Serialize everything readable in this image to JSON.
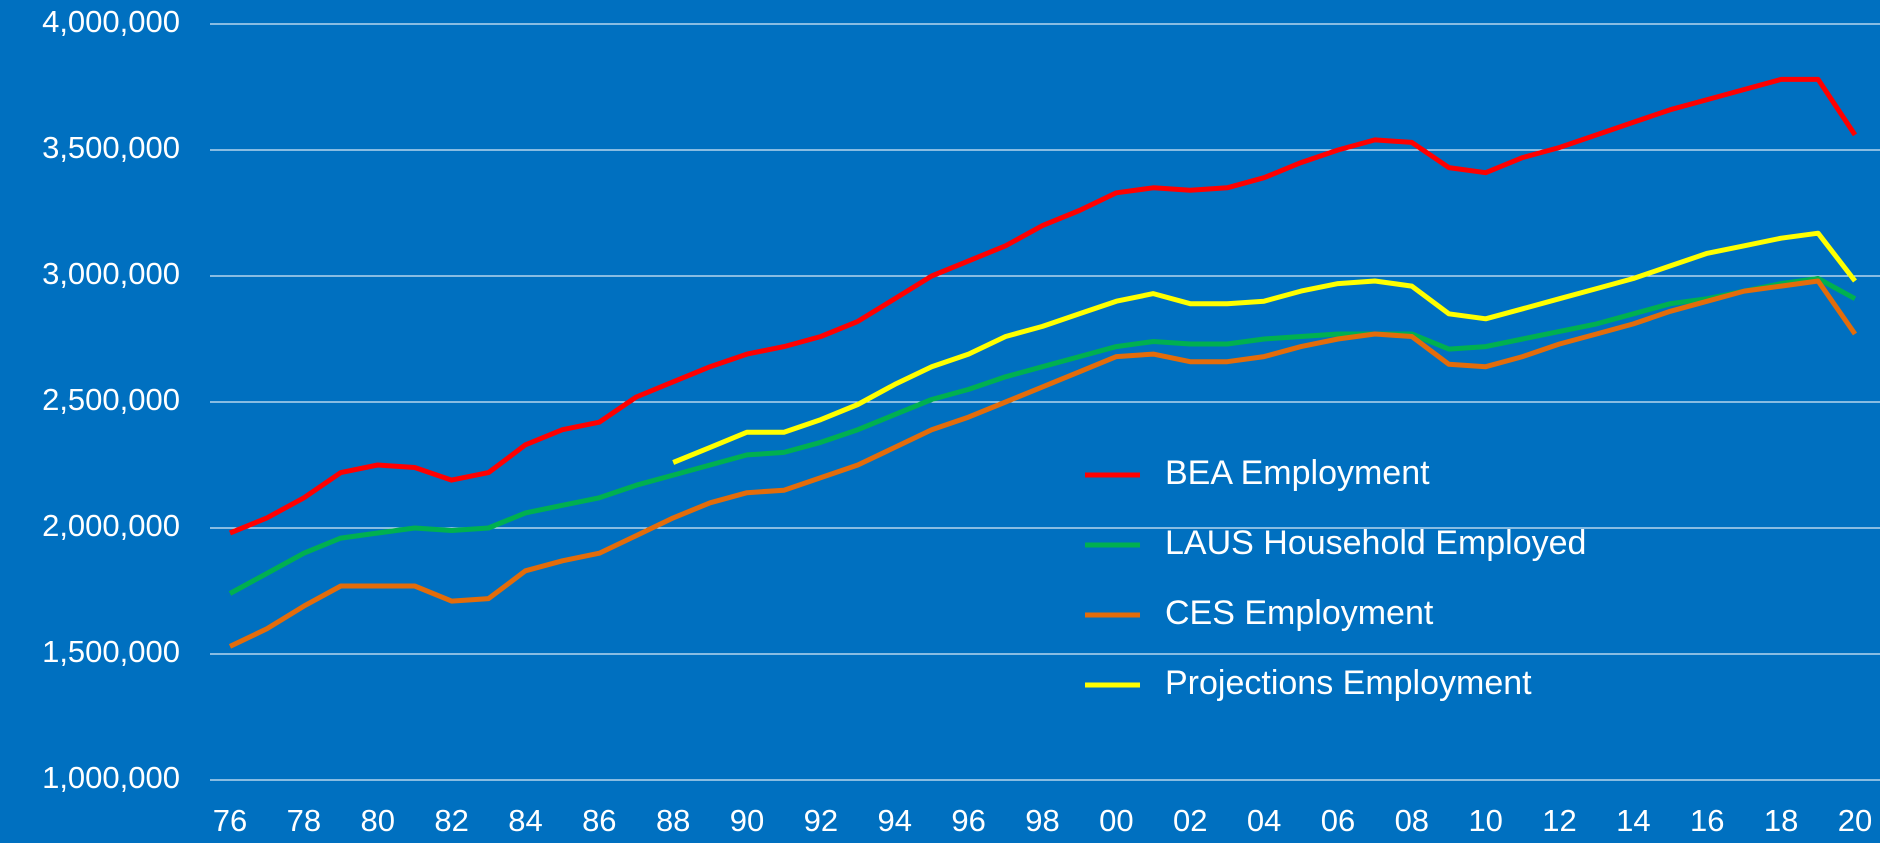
{
  "chart_data": {
    "type": "line",
    "categories": [
      "76",
      null,
      "78",
      null,
      "80",
      null,
      "82",
      null,
      "84",
      null,
      "86",
      null,
      "88",
      null,
      "90",
      null,
      "92",
      null,
      "94",
      null,
      "96",
      null,
      "98",
      null,
      "00",
      null,
      "02",
      null,
      "04",
      null,
      "06",
      null,
      "08",
      null,
      "10",
      null,
      "12",
      null,
      "14",
      null,
      "16",
      null,
      "18",
      null,
      "20"
    ],
    "series": [
      {
        "name": "BEA Employment",
        "color": "#ff0000",
        "values": [
          1980000,
          2040000,
          2120000,
          2220000,
          2250000,
          2240000,
          2190000,
          2220000,
          2330000,
          2390000,
          2420000,
          2520000,
          2580000,
          2640000,
          2690000,
          2720000,
          2760000,
          2820000,
          2910000,
          3000000,
          3060000,
          3120000,
          3200000,
          3260000,
          3330000,
          3350000,
          3340000,
          3350000,
          3390000,
          3450000,
          3500000,
          3540000,
          3530000,
          3430000,
          3410000,
          3470000,
          3510000,
          3560000,
          3610000,
          3660000,
          3700000,
          3740000,
          3780000,
          3780000,
          3560000
        ]
      },
      {
        "name": "LAUS Household Employed",
        "color": "#00b050",
        "values": [
          1740000,
          1820000,
          1900000,
          1960000,
          1980000,
          2000000,
          1990000,
          2000000,
          2060000,
          2090000,
          2120000,
          2170000,
          2210000,
          2250000,
          2290000,
          2300000,
          2340000,
          2390000,
          2450000,
          2510000,
          2550000,
          2600000,
          2640000,
          2680000,
          2720000,
          2740000,
          2730000,
          2730000,
          2750000,
          2760000,
          2770000,
          2770000,
          2770000,
          2710000,
          2720000,
          2750000,
          2780000,
          2810000,
          2850000,
          2890000,
          2910000,
          2940000,
          2970000,
          2990000,
          2910000
        ]
      },
      {
        "name": "CES Employment",
        "color": "#e36c0a",
        "values": [
          1530000,
          1600000,
          1690000,
          1770000,
          1770000,
          1770000,
          1710000,
          1720000,
          1830000,
          1870000,
          1900000,
          1970000,
          2040000,
          2100000,
          2140000,
          2150000,
          2200000,
          2250000,
          2320000,
          2390000,
          2440000,
          2500000,
          2560000,
          2620000,
          2680000,
          2690000,
          2660000,
          2660000,
          2680000,
          2720000,
          2750000,
          2770000,
          2760000,
          2650000,
          2640000,
          2680000,
          2730000,
          2770000,
          2810000,
          2860000,
          2900000,
          2940000,
          2960000,
          2980000,
          2770000
        ]
      },
      {
        "name": "Projections Employment",
        "color": "#ffff00",
        "values": [
          null,
          null,
          null,
          null,
          null,
          null,
          null,
          null,
          null,
          null,
          null,
          null,
          2260000,
          2320000,
          2380000,
          2380000,
          2430000,
          2490000,
          2570000,
          2640000,
          2690000,
          2760000,
          2800000,
          2850000,
          2900000,
          2930000,
          2890000,
          2890000,
          2900000,
          2940000,
          2970000,
          2980000,
          2960000,
          2850000,
          2830000,
          2870000,
          2910000,
          2950000,
          2990000,
          3040000,
          3090000,
          3120000,
          3150000,
          3170000,
          2980000
        ]
      }
    ],
    "ylim": [
      1000000,
      4000000
    ],
    "yticks": [
      {
        "value": 1000000,
        "label": "1,000,000"
      },
      {
        "value": 1500000,
        "label": "1,500,000"
      },
      {
        "value": 2000000,
        "label": "2,000,000"
      },
      {
        "value": 2500000,
        "label": "2,500,000"
      },
      {
        "value": 3000000,
        "label": "3,000,000"
      },
      {
        "value": 3500000,
        "label": "3,500,000"
      },
      {
        "value": 4000000,
        "label": "4,000,000"
      }
    ],
    "grid": true
  }
}
